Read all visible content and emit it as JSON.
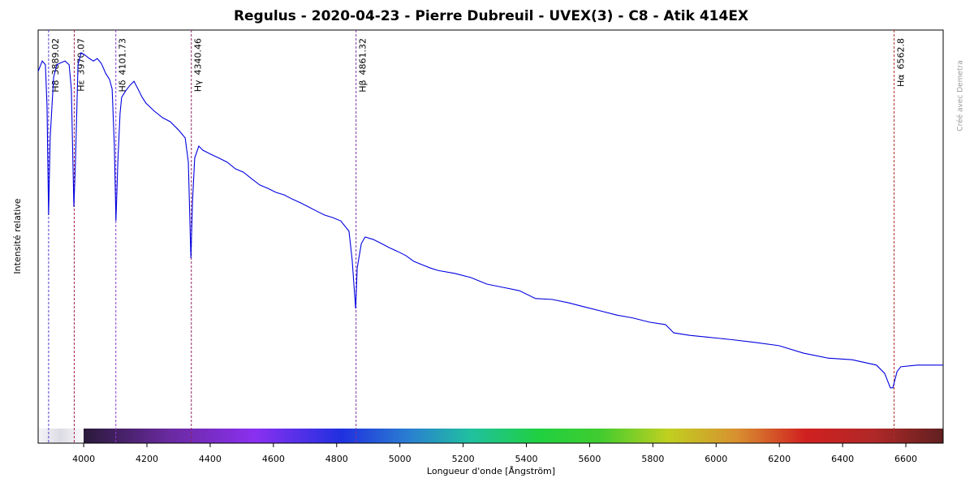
{
  "chart_data": {
    "type": "line",
    "title": "Regulus - 2020-04-23 - Pierre Dubreuil - UVEX(3) - C8 - Atik 414EX",
    "x_label": "Longueur d'onde [Ångström]",
    "y_label": "Intensité relative",
    "watermark": "Créé avec Demetra",
    "xlim": [
      3856,
      6718
    ],
    "xticks": [
      4000,
      4200,
      4400,
      4600,
      4800,
      5000,
      5200,
      5400,
      5600,
      5800,
      6000,
      6200,
      6400,
      6600
    ],
    "ylim": [
      0,
      1
    ],
    "series": [
      {
        "color": "#0000e0",
        "x": [
          3856,
          3869,
          3879,
          3884,
          3889,
          3894,
          3905,
          3915,
          3928,
          3941,
          3954,
          3961,
          3969,
          3974,
          3982,
          3992,
          4005,
          4018,
          4031,
          4043,
          4056,
          4069,
          4082,
          4090,
          4097,
          4102,
          4108,
          4115,
          4120,
          4133,
          4146,
          4159,
          4172,
          4185,
          4197,
          4223,
          4249,
          4274,
          4300,
          4321,
          4331,
          4339,
          4344,
          4351,
          4364,
          4377,
          4403,
          4428,
          4454,
          4480,
          4505,
          4531,
          4557,
          4582,
          4608,
          4634,
          4659,
          4685,
          4711,
          4736,
          4762,
          4788,
          4813,
          4839,
          4849,
          4860,
          4865,
          4878,
          4890,
          4916,
          4942,
          4967,
          4993,
          5019,
          5044,
          5070,
          5096,
          5121,
          5173,
          5224,
          5275,
          5327,
          5378,
          5429,
          5481,
          5532,
          5583,
          5635,
          5686,
          5737,
          5789,
          5840,
          5866,
          5917,
          5968,
          6045,
          6122,
          6199,
          6276,
          6353,
          6430,
          6507,
          6533,
          6551,
          6559,
          6572,
          6584,
          6636,
          6718
        ],
        "values": [
          0.9,
          0.925,
          0.916,
          0.817,
          0.552,
          0.739,
          0.886,
          0.916,
          0.921,
          0.925,
          0.916,
          0.857,
          0.572,
          0.68,
          0.916,
          0.945,
          0.939,
          0.931,
          0.925,
          0.931,
          0.919,
          0.896,
          0.88,
          0.857,
          0.719,
          0.538,
          0.68,
          0.798,
          0.837,
          0.853,
          0.866,
          0.876,
          0.857,
          0.837,
          0.823,
          0.804,
          0.788,
          0.778,
          0.758,
          0.739,
          0.68,
          0.448,
          0.582,
          0.69,
          0.719,
          0.709,
          0.699,
          0.69,
          0.68,
          0.664,
          0.656,
          0.64,
          0.625,
          0.617,
          0.607,
          0.601,
          0.591,
          0.582,
          0.572,
          0.562,
          0.552,
          0.546,
          0.538,
          0.513,
          0.444,
          0.326,
          0.424,
          0.483,
          0.499,
          0.493,
          0.483,
          0.473,
          0.464,
          0.454,
          0.44,
          0.432,
          0.424,
          0.418,
          0.411,
          0.401,
          0.385,
          0.377,
          0.369,
          0.35,
          0.348,
          0.34,
          0.33,
          0.32,
          0.31,
          0.303,
          0.293,
          0.287,
          0.267,
          0.261,
          0.257,
          0.251,
          0.244,
          0.236,
          0.218,
          0.206,
          0.202,
          0.189,
          0.169,
          0.134,
          0.134,
          0.173,
          0.185,
          0.189,
          0.189
        ]
      }
    ],
    "lines": [
      {
        "name": "H8",
        "value": 3889.02,
        "color": "#5a3ad0"
      },
      {
        "name": "Hε",
        "value": 3970.07,
        "color": "#a02050"
      },
      {
        "name": "Hδ",
        "value": 4101.73,
        "color": "#8a3ad0"
      },
      {
        "name": "Hγ",
        "value": 4340.46,
        "color": "#902060"
      },
      {
        "name": "Hβ",
        "value": 4861.32,
        "color": "#8030a0"
      },
      {
        "name": "Hα",
        "value": 6562.8,
        "color": "#b03020"
      }
    ]
  }
}
